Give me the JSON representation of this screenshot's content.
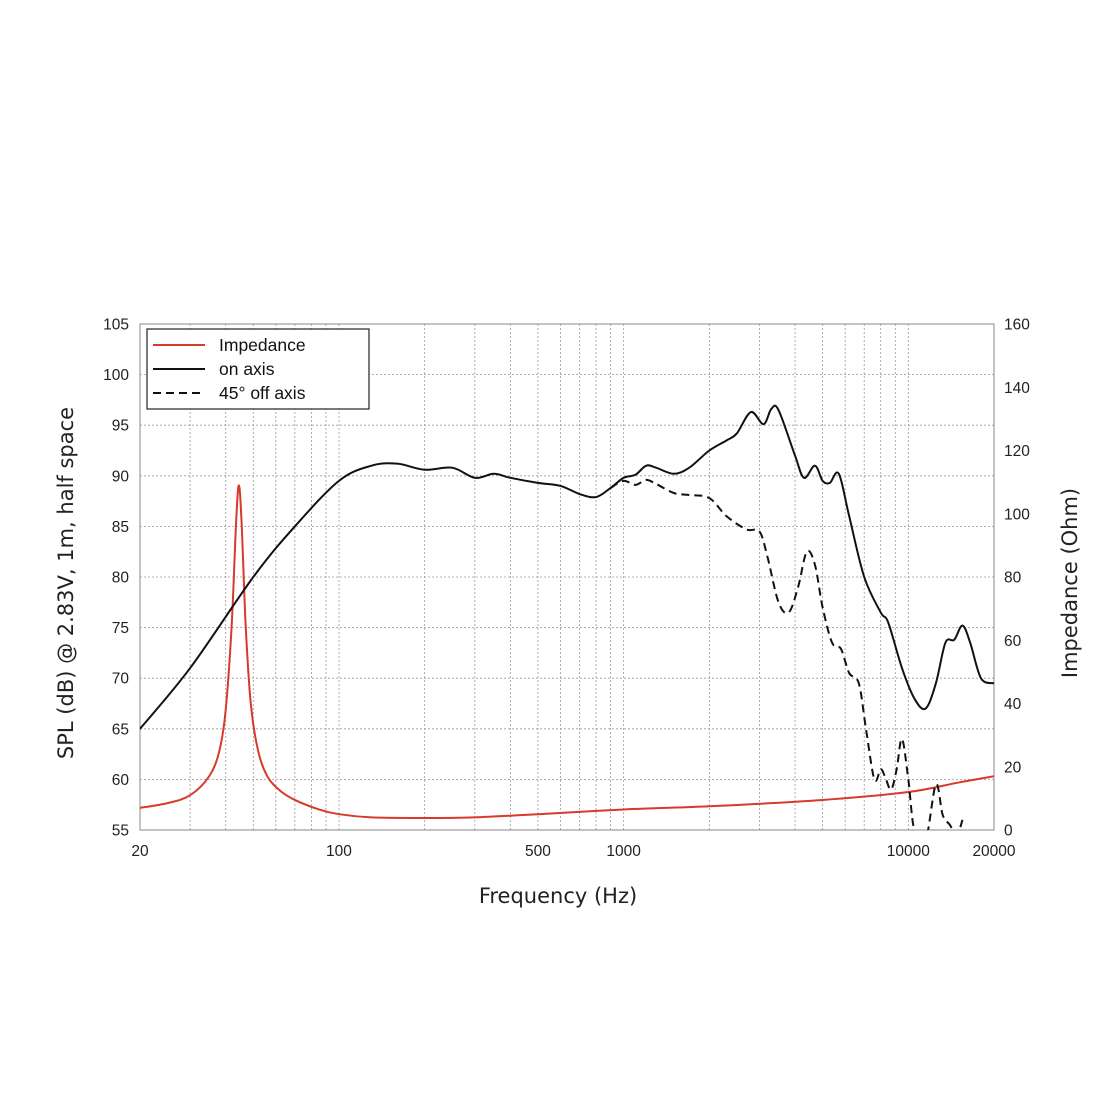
{
  "chart_data": {
    "type": "line",
    "xlabel": "Frequency (Hz)",
    "ylabel_left": "SPL (dB) @ 2.83V, 1m, half space",
    "ylabel_right": "Impedance (Ohm)",
    "x_scale": "log",
    "xlim": [
      20,
      20000
    ],
    "ylim_left": [
      55,
      105
    ],
    "ylim_right": [
      0,
      160
    ],
    "grid": true,
    "legend_position": "top-left",
    "x_tick_labels": [
      "20",
      "100",
      "500",
      "1000",
      "10000",
      "20000"
    ],
    "y_left_tick_labels": [
      "55",
      "60",
      "65",
      "70",
      "75",
      "80",
      "85",
      "90",
      "95",
      "100",
      "105"
    ],
    "y_right_tick_labels": [
      "0",
      "20",
      "40",
      "60",
      "80",
      "100",
      "120",
      "140",
      "160"
    ],
    "colors": {
      "impedance": "#d63a2a",
      "on_axis": "#111111",
      "off_axis": "#111111"
    },
    "series": [
      {
        "name": "Impedance",
        "axis": "right",
        "style": "solid",
        "points": [
          [
            20,
            7
          ],
          [
            25,
            8.5
          ],
          [
            30,
            11
          ],
          [
            35,
            17
          ],
          [
            38,
            25
          ],
          [
            40,
            38
          ],
          [
            42,
            65
          ],
          [
            43.5,
            97
          ],
          [
            44.5,
            109
          ],
          [
            45.5,
            97
          ],
          [
            47,
            65
          ],
          [
            49,
            40
          ],
          [
            52,
            25
          ],
          [
            56,
            17
          ],
          [
            62,
            12.5
          ],
          [
            70,
            9.5
          ],
          [
            85,
            6.5
          ],
          [
            100,
            5
          ],
          [
            130,
            4
          ],
          [
            200,
            3.8
          ],
          [
            300,
            4
          ],
          [
            500,
            5
          ],
          [
            1000,
            6.5
          ],
          [
            2000,
            7.5
          ],
          [
            5000,
            9.5
          ],
          [
            10000,
            12
          ],
          [
            15000,
            15
          ],
          [
            20000,
            17
          ]
        ]
      },
      {
        "name": "on axis",
        "axis": "left",
        "style": "solid",
        "points": [
          [
            20,
            65
          ],
          [
            30,
            71
          ],
          [
            50,
            80
          ],
          [
            70,
            85
          ],
          [
            100,
            89.5
          ],
          [
            130,
            91
          ],
          [
            160,
            91.2
          ],
          [
            200,
            90.6
          ],
          [
            250,
            90.8
          ],
          [
            300,
            89.8
          ],
          [
            350,
            90.2
          ],
          [
            400,
            89.8
          ],
          [
            500,
            89.3
          ],
          [
            600,
            89
          ],
          [
            700,
            88.2
          ],
          [
            800,
            87.9
          ],
          [
            900,
            88.8
          ],
          [
            1000,
            89.8
          ],
          [
            1100,
            90.1
          ],
          [
            1200,
            91
          ],
          [
            1300,
            90.8
          ],
          [
            1500,
            90.2
          ],
          [
            1700,
            90.8
          ],
          [
            2000,
            92.5
          ],
          [
            2300,
            93.5
          ],
          [
            2500,
            94.2
          ],
          [
            2800,
            96.3
          ],
          [
            3100,
            95.1
          ],
          [
            3300,
            96.6
          ],
          [
            3500,
            96.5
          ],
          [
            4000,
            92
          ],
          [
            4300,
            89.8
          ],
          [
            4700,
            91
          ],
          [
            5000,
            89.5
          ],
          [
            5300,
            89.3
          ],
          [
            5700,
            90.2
          ],
          [
            6200,
            86
          ],
          [
            7000,
            80
          ],
          [
            8000,
            76.5
          ],
          [
            8500,
            75.5
          ],
          [
            9500,
            71
          ],
          [
            10500,
            68
          ],
          [
            11500,
            67
          ],
          [
            12500,
            69.5
          ],
          [
            13500,
            73.5
          ],
          [
            14500,
            73.8
          ],
          [
            15500,
            75.2
          ],
          [
            16500,
            73.5
          ],
          [
            18000,
            70
          ],
          [
            20000,
            69.5
          ]
        ]
      },
      {
        "name": "45° off axis",
        "axis": "left",
        "style": "dashed",
        "points": [
          [
            900,
            88.8
          ],
          [
            1000,
            89.5
          ],
          [
            1100,
            89.1
          ],
          [
            1200,
            89.6
          ],
          [
            1300,
            89.2
          ],
          [
            1500,
            88.3
          ],
          [
            1700,
            88.1
          ],
          [
            2000,
            87.8
          ],
          [
            2300,
            86
          ],
          [
            2700,
            84.7
          ],
          [
            3000,
            84.5
          ],
          [
            3200,
            82
          ],
          [
            3500,
            77.5
          ],
          [
            3800,
            76.5
          ],
          [
            4100,
            79
          ],
          [
            4400,
            82.5
          ],
          [
            4700,
            81.2
          ],
          [
            5000,
            77
          ],
          [
            5400,
            73.5
          ],
          [
            5800,
            72.9
          ],
          [
            6200,
            70.5
          ],
          [
            6700,
            69.5
          ],
          [
            7100,
            65
          ],
          [
            7600,
            60
          ],
          [
            8000,
            61
          ],
          [
            8300,
            60.2
          ],
          [
            8700,
            59
          ],
          [
            9100,
            61
          ],
          [
            9500,
            64
          ],
          [
            10000,
            60
          ],
          [
            10500,
            55
          ],
          [
            11500,
            54
          ],
          [
            12500,
            59.5
          ],
          [
            13200,
            56.5
          ],
          [
            14000,
            55.5
          ],
          [
            14800,
            54.5
          ],
          [
            15500,
            56
          ]
        ]
      }
    ]
  }
}
